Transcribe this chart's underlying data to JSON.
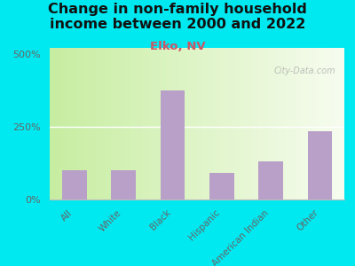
{
  "title": "Change in non-family household\nincome between 2000 and 2022",
  "subtitle": "Elko, NV",
  "categories": [
    "All",
    "White",
    "Black",
    "Hispanic",
    "American Indian",
    "Other"
  ],
  "values": [
    100,
    100,
    375,
    90,
    130,
    235
  ],
  "bar_color": "#b8a0c8",
  "title_fontsize": 11.5,
  "subtitle_fontsize": 9.5,
  "subtitle_color": "#cc5566",
  "background_outer": "#00e8f0",
  "yticks": [
    0,
    250,
    500
  ],
  "ytick_labels": [
    "0%",
    "250%",
    "500%"
  ],
  "ylim": [
    0,
    520
  ],
  "watermark": "City-Data.com",
  "gradient_left": "#c5e8a0",
  "gradient_mid": "#e8f5d0",
  "gradient_right": "#f8f8ee"
}
